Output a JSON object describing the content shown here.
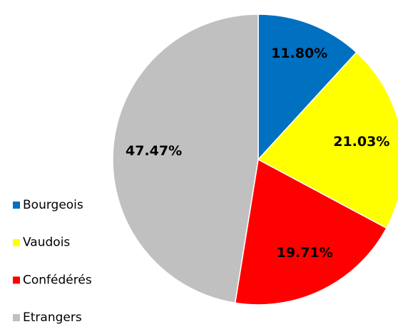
{
  "chart_data": {
    "type": "pie",
    "categories": [
      "Bourgeois",
      "Vaudois",
      "Confédérés",
      "Etrangers"
    ],
    "values": [
      11.8,
      21.03,
      19.71,
      47.47
    ],
    "value_labels": [
      "11.80%",
      "21.03%",
      "19.71%",
      "47.47%"
    ],
    "colors": [
      "#0070c0",
      "#ffff00",
      "#ff0000",
      "#c0c0c0"
    ],
    "legend": "bottom-left"
  }
}
